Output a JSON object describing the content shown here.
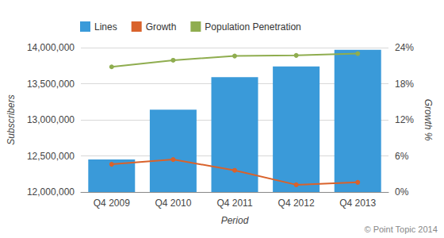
{
  "chart_data": {
    "type": "bar",
    "categories": [
      "Q4 2009",
      "Q4 2010",
      "Q4 2011",
      "Q4 2012",
      "Q4 2013"
    ],
    "series": [
      {
        "name": "Lines",
        "type": "bar",
        "color": "#3a9ad9",
        "axis": "y",
        "values": [
          12450000,
          13140000,
          13590000,
          13740000,
          13970000
        ]
      },
      {
        "name": "Growth",
        "type": "line",
        "color": "#d9622b",
        "axis": "y2",
        "marker": "circle",
        "line_style": "solid",
        "values": [
          4.6,
          5.4,
          3.6,
          1.2,
          1.6
        ]
      },
      {
        "name": "Population Penetration",
        "type": "line",
        "color": "#8fad4f",
        "axis": "y2",
        "marker": "circle",
        "line_style": "solid",
        "values": [
          20.8,
          21.9,
          22.6,
          22.7,
          23.0
        ]
      }
    ],
    "x_label": "Period",
    "y_label": "Subscribers",
    "y2_label": "Growth %",
    "ylim": [
      12000000,
      14000000
    ],
    "yticks": [
      {
        "value": 12000000,
        "label": "12,000,000"
      },
      {
        "value": 12500000,
        "label": "12,500,000"
      },
      {
        "value": 13000000,
        "label": "13,000,000"
      },
      {
        "value": 13500000,
        "label": "13,500,000"
      },
      {
        "value": 14000000,
        "label": "14,000,000"
      }
    ],
    "y2lim": [
      0,
      24
    ],
    "y2ticks": [
      {
        "value": 0,
        "label": "0%"
      },
      {
        "value": 6,
        "label": "6%"
      },
      {
        "value": 12,
        "label": "12%"
      },
      {
        "value": 18,
        "label": "18%"
      },
      {
        "value": 24,
        "label": "24%"
      }
    ],
    "grid": true,
    "legend": "top-left",
    "annotations": [
      "© Point Topic 2014"
    ]
  }
}
